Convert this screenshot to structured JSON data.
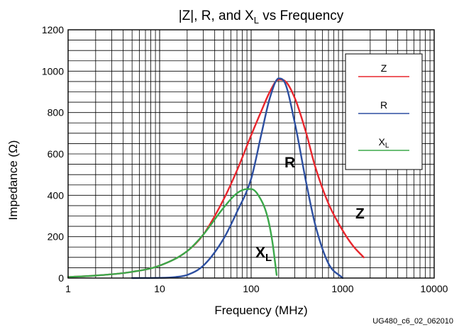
{
  "chart_data": {
    "type": "line",
    "title": {
      "pre": "|Z|, R, and X",
      "sub": "L",
      "post": " vs Frequency"
    },
    "xlabel": "Frequency (MHz)",
    "ylabel": "Impedance (Ω)",
    "x_scale": "log",
    "xlim": [
      1,
      10000
    ],
    "ylim": [
      0,
      1200
    ],
    "x_ticks": [
      1,
      10,
      100,
      1000,
      10000
    ],
    "x_tick_labels": [
      "1",
      "10",
      "100",
      "1000",
      "10000"
    ],
    "y_ticks": [
      0,
      200,
      400,
      600,
      800,
      1000,
      1200
    ],
    "y_tick_labels": [
      "0",
      "200",
      "400",
      "600",
      "800",
      "1000",
      "1200"
    ],
    "grid": true,
    "legend_position": "top-right",
    "series": [
      {
        "name": "Z",
        "color": "#e8262d",
        "x": [
          1,
          2,
          5,
          10,
          20,
          30,
          50,
          70,
          100,
          130,
          160,
          200,
          230,
          300,
          400,
          500,
          700,
          1000,
          1300,
          1700
        ],
        "y": [
          5,
          12,
          30,
          60,
          130,
          210,
          380,
          520,
          690,
          810,
          900,
          960,
          955,
          870,
          700,
          540,
          360,
          230,
          155,
          100
        ]
      },
      {
        "name": "R",
        "color": "#2d4fa0",
        "x": [
          5,
          10,
          15,
          20,
          30,
          50,
          70,
          100,
          130,
          160,
          200,
          230,
          300,
          400,
          500,
          700,
          1000
        ],
        "y": [
          0,
          1,
          5,
          15,
          60,
          190,
          320,
          480,
          700,
          870,
          965,
          950,
          750,
          460,
          260,
          70,
          0
        ]
      },
      {
        "name": "XL",
        "color": "#3ba84a",
        "x": [
          1,
          2,
          5,
          10,
          20,
          30,
          50,
          70,
          90,
          100,
          120,
          150,
          170,
          190
        ],
        "y": [
          5,
          12,
          30,
          60,
          130,
          210,
          340,
          410,
          430,
          430,
          400,
          300,
          180,
          15
        ]
      }
    ],
    "legend": [
      {
        "text": "Z",
        "sub": "",
        "color": "#e8262d"
      },
      {
        "text": "R",
        "sub": "",
        "color": "#2d4fa0"
      },
      {
        "text": "X",
        "sub": "L",
        "color": "#3ba84a"
      }
    ],
    "annotations": [
      {
        "text": "R",
        "sub": "",
        "color": "#2d4fa0"
      },
      {
        "text": "Z",
        "sub": "",
        "color": "#e8262d"
      },
      {
        "text": "X",
        "sub": "L",
        "color": "#3ba84a"
      }
    ],
    "figure_note": "UG480_c6_02_062010"
  }
}
